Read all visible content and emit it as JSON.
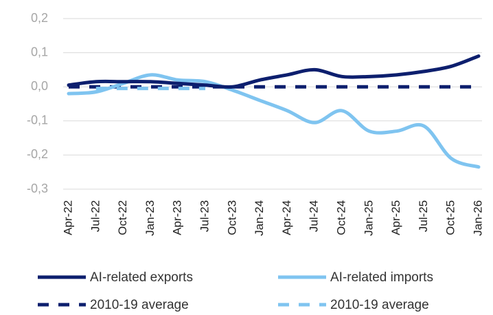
{
  "chart_data": {
    "type": "line",
    "categories": [
      "Apr-22",
      "Jul-22",
      "Oct-22",
      "Jan-23",
      "Apr-23",
      "Jul-23",
      "Oct-23",
      "Jan-24",
      "Apr-24",
      "Jul-24",
      "Oct-24",
      "Jan-25",
      "Apr-25",
      "Jul-25",
      "Oct-25",
      "Jan-26"
    ],
    "series": [
      {
        "name": "AI-related exports",
        "color": "#0d1f6e",
        "dashed": false,
        "values": [
          0.005,
          0.015,
          0.015,
          0.015,
          0.01,
          0.005,
          0.0,
          0.02,
          0.035,
          0.05,
          0.03,
          0.03,
          0.035,
          0.045,
          0.06,
          0.09
        ]
      },
      {
        "name": "AI-related imports",
        "color": "#7fc4f0",
        "dashed": false,
        "values": [
          -0.02,
          -0.015,
          0.01,
          0.035,
          0.02,
          0.015,
          -0.01,
          -0.04,
          -0.07,
          -0.105,
          -0.07,
          -0.13,
          -0.13,
          -0.115,
          -0.21,
          -0.235
        ]
      },
      {
        "name": "2010-19 average",
        "color": "#0d1f6e",
        "dashed": true,
        "values": [
          0,
          0,
          0,
          0,
          0,
          0,
          0,
          0,
          0,
          0,
          0,
          0,
          0,
          0,
          0,
          0
        ]
      },
      {
        "name": "2010-19 average",
        "color": "#7fc4f0",
        "dashed": true,
        "values": [
          null,
          -0.005,
          -0.005,
          -0.005,
          -0.005,
          -0.005,
          null,
          null,
          null,
          null,
          null,
          null,
          null,
          null,
          null,
          null
        ]
      }
    ],
    "ylim": [
      -0.3,
      0.2
    ],
    "yticks": [
      {
        "value": 0.2,
        "label": "0,2"
      },
      {
        "value": 0.1,
        "label": "0,1"
      },
      {
        "value": 0,
        "label": "0,0"
      },
      {
        "value": -0.1,
        "label": "-0,1"
      },
      {
        "value": -0.2,
        "label": "-0,2"
      },
      {
        "value": -0.3,
        "label": "-0,3"
      }
    ],
    "grid": true,
    "legend": "bottom"
  }
}
